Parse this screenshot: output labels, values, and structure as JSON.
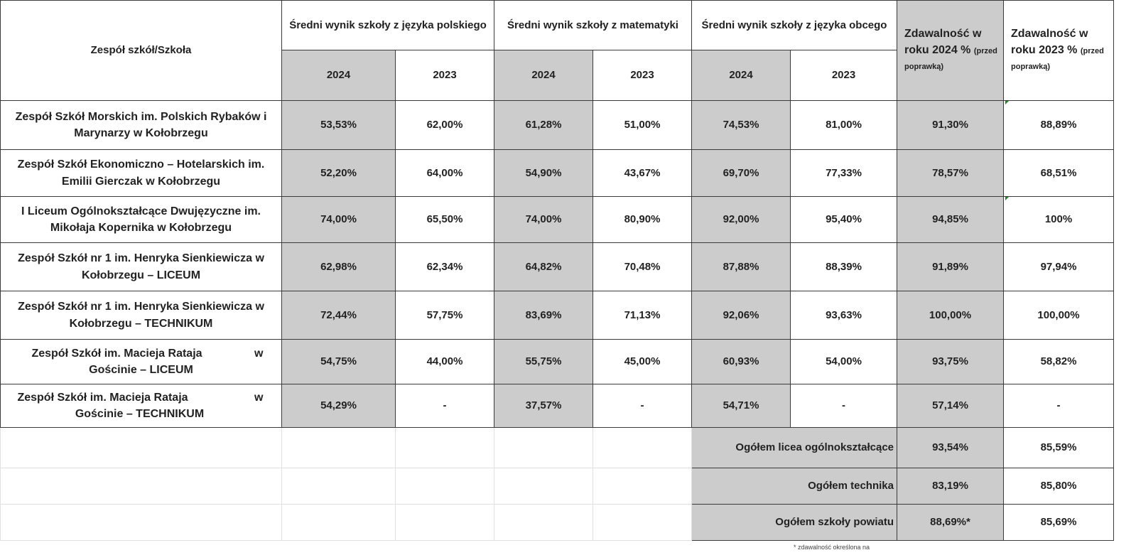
{
  "header": {
    "school_col": "Zespół szkół/Szkoła",
    "polish": "Średni wynik szkoły z języka polskiego",
    "math": "Średni wynik szkoły z matematyki",
    "foreign": "Średni wynik szkoły z języka obcego",
    "pass_2024_main": "Zdawalność w roku 2024 %",
    "pass_2024_note": "(przed poprawką)",
    "pass_2023_main": "Zdawalność w roku 2023 %",
    "pass_2023_note": "(przed poprawką)",
    "year_a": "2024",
    "year_b": "2023"
  },
  "rows": [
    {
      "school": "Zespół Szkół Morskich im. Polskich Rybaków i Marynarzy w Kołobrzegu",
      "pol24": "53,53%",
      "pol23": "62,00%",
      "mat24": "61,28%",
      "mat23": "51,00%",
      "obc24": "74,53%",
      "obc23": "81,00%",
      "zd24": "91,30%",
      "zd23": "88,89%"
    },
    {
      "school": "Zespół Szkół Ekonomiczno – Hotelarskich im. Emilii Gierczak w Kołobrzegu",
      "pol24": "52,20%",
      "pol23": "64,00%",
      "mat24": "54,90%",
      "mat23": "43,67%",
      "obc24": "69,70%",
      "obc23": "77,33%",
      "zd24": "78,57%",
      "zd23": "68,51%"
    },
    {
      "school": "I Liceum Ogólnokształcące Dwujęzyczne im. Mikołaja Kopernika w Kołobrzegu",
      "pol24": "74,00%",
      "pol23": "65,50%",
      "mat24": "74,00%",
      "mat23": "80,90%",
      "obc24": "92,00%",
      "obc23": "95,40%",
      "zd24": "94,85%",
      "zd23": "100%"
    },
    {
      "school": "Zespół Szkół nr 1 im. Henryka Sienkiewicza w Kołobrzegu – LICEUM",
      "pol24": "62,98%",
      "pol23": "62,34%",
      "mat24": "64,82%",
      "mat23": "70,48%",
      "obc24": "87,88%",
      "obc23": "88,39%",
      "zd24": "91,89%",
      "zd23": "97,94%"
    },
    {
      "school": "Zespół Szkół nr 1 im. Henryka Sienkiewicza w Kołobrzegu – TECHNIKUM",
      "pol24": "72,44%",
      "pol23": "57,75%",
      "mat24": "83,69%",
      "mat23": "71,13%",
      "obc24": "92,06%",
      "obc23": "93,63%",
      "zd24": "100,00%",
      "zd23": "100,00%"
    },
    {
      "school_line1": "Zespół Szkół im. Macieja Rataja",
      "school_w": "w",
      "school_line2": "Gościnie – LICEUM",
      "pol24": "54,75%",
      "pol23": "44,00%",
      "mat24": "55,75%",
      "mat23": "45,00%",
      "obc24": "60,93%",
      "obc23": "54,00%",
      "zd24": "93,75%",
      "zd23": "58,82%"
    },
    {
      "school_line1": "Zespół Szkół im. Macieja Rataja",
      "school_w": "w",
      "school_line2": "Gościnie – TECHNIKUM",
      "pol24": "54,29%",
      "pol23": "-",
      "mat24": "37,57%",
      "mat23": "-",
      "obc24": "54,71%",
      "obc23": "-",
      "zd24": "57,14%",
      "zd23": "-"
    }
  ],
  "totals": [
    {
      "label": "Ogółem licea ogólnokształcące",
      "zd24": "93,54%",
      "zd23": "85,59%"
    },
    {
      "label": "Ogółem technika",
      "zd24": "83,19%",
      "zd23": "85,80%"
    },
    {
      "label": "Ogółem szkoły powiatu",
      "zd24": "88,69%*",
      "zd23": "85,69%"
    }
  ],
  "footnote": "* zdawalność określona na",
  "marker_color": "#2e7d32",
  "header_fill": "#cccccc"
}
